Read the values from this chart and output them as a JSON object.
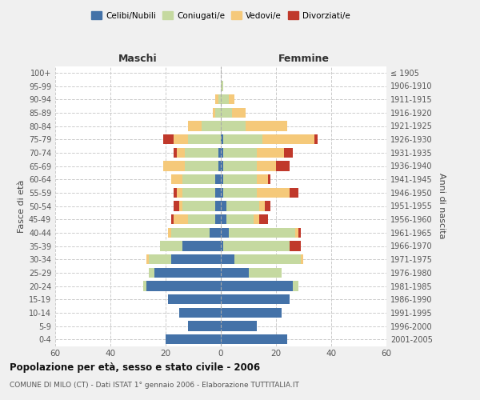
{
  "age_groups": [
    "0-4",
    "5-9",
    "10-14",
    "15-19",
    "20-24",
    "25-29",
    "30-34",
    "35-39",
    "40-44",
    "45-49",
    "50-54",
    "55-59",
    "60-64",
    "65-69",
    "70-74",
    "75-79",
    "80-84",
    "85-89",
    "90-94",
    "95-99",
    "100+"
  ],
  "birth_years": [
    "2001-2005",
    "1996-2000",
    "1991-1995",
    "1986-1990",
    "1981-1985",
    "1976-1980",
    "1971-1975",
    "1966-1970",
    "1961-1965",
    "1956-1960",
    "1951-1955",
    "1946-1950",
    "1941-1945",
    "1936-1940",
    "1931-1935",
    "1926-1930",
    "1921-1925",
    "1916-1920",
    "1911-1915",
    "1906-1910",
    "≤ 1905"
  ],
  "males": {
    "celibi": [
      20,
      12,
      15,
      19,
      27,
      24,
      18,
      14,
      4,
      2,
      2,
      2,
      2,
      1,
      1,
      0,
      0,
      0,
      0,
      0,
      0
    ],
    "coniugati": [
      0,
      0,
      0,
      0,
      1,
      2,
      8,
      8,
      14,
      10,
      12,
      12,
      12,
      12,
      12,
      12,
      7,
      2,
      1,
      0,
      0
    ],
    "vedovi": [
      0,
      0,
      0,
      0,
      0,
      0,
      1,
      0,
      1,
      5,
      1,
      2,
      4,
      8,
      3,
      5,
      5,
      1,
      1,
      0,
      0
    ],
    "divorziati": [
      0,
      0,
      0,
      0,
      0,
      0,
      0,
      0,
      0,
      1,
      2,
      1,
      0,
      0,
      1,
      4,
      0,
      0,
      0,
      0,
      0
    ]
  },
  "females": {
    "nubili": [
      24,
      13,
      22,
      25,
      26,
      10,
      5,
      1,
      3,
      2,
      2,
      1,
      1,
      1,
      1,
      1,
      0,
      0,
      0,
      0,
      0
    ],
    "coniugate": [
      0,
      0,
      0,
      0,
      2,
      12,
      24,
      24,
      24,
      10,
      12,
      12,
      12,
      12,
      12,
      14,
      9,
      4,
      3,
      1,
      0
    ],
    "vedove": [
      0,
      0,
      0,
      0,
      0,
      0,
      1,
      0,
      1,
      2,
      2,
      12,
      4,
      7,
      10,
      19,
      15,
      5,
      2,
      0,
      0
    ],
    "divorziate": [
      0,
      0,
      0,
      0,
      0,
      0,
      0,
      4,
      1,
      3,
      2,
      3,
      1,
      5,
      3,
      1,
      0,
      0,
      0,
      0,
      0
    ]
  },
  "colors": {
    "celibi": "#4472a8",
    "coniugati": "#c5d9a0",
    "vedovi": "#f5c97a",
    "divorziati": "#c0392b"
  },
  "xlim": 60,
  "title": "Popolazione per età, sesso e stato civile - 2006",
  "subtitle": "COMUNE DI MILO (CT) - Dati ISTAT 1° gennaio 2006 - Elaborazione TUTTITALIA.IT",
  "ylabel_left": "Fasce di età",
  "ylabel_right": "Anni di nascita",
  "xlabel_maschi": "Maschi",
  "xlabel_femmine": "Femmine",
  "bg_color": "#f0f0f0",
  "plot_bg": "#ffffff"
}
